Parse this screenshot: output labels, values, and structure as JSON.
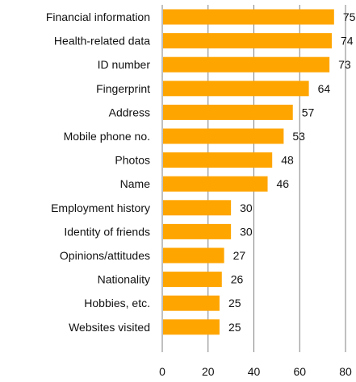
{
  "chart_data": {
    "type": "bar",
    "orientation": "horizontal",
    "categories": [
      "Financial information",
      "Health-related data",
      "ID number",
      "Fingerprint",
      "Address",
      "Mobile phone no.",
      "Photos",
      "Name",
      "Employment history",
      "Identity of friends",
      "Opinions/attitudes",
      "Nationality",
      "Hobbies, etc.",
      "Websites visited"
    ],
    "values": [
      75,
      74,
      73,
      64,
      57,
      53,
      48,
      46,
      30,
      30,
      27,
      26,
      25,
      25
    ],
    "data_labels": [
      "75",
      "74",
      "73",
      "64",
      "57",
      "53",
      "48",
      "46",
      "30",
      "30",
      "27",
      "26",
      "25",
      "25"
    ],
    "x_ticks": [
      "0",
      "20",
      "40",
      "60",
      "80"
    ],
    "xlim": [
      0,
      80
    ],
    "title": "",
    "xlabel": "",
    "ylabel": "",
    "grid": "vertical",
    "legend": "none",
    "bar_color": "#FFA500"
  }
}
